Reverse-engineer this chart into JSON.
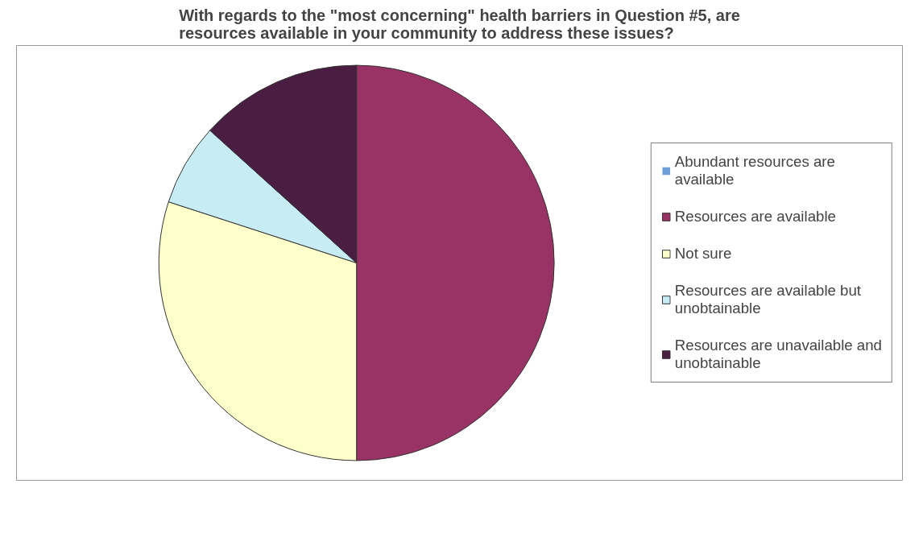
{
  "chart_data": {
    "type": "pie",
    "title": "With regards to the \"most concerning\" health barriers in Question #5, are resources available in your community to address these issues?",
    "categories": [
      "Abundant resources are available",
      "Resources are available",
      "Not sure",
      "Resources are available but unobtainable",
      "Resources are unavailable and unobtainable"
    ],
    "values": [
      0,
      50,
      30,
      6.7,
      13.3
    ],
    "colors": [
      "#6f9fd8",
      "#993366",
      "#ffffcc",
      "#c8ecf4",
      "#4a1e42"
    ],
    "legend": "right"
  }
}
